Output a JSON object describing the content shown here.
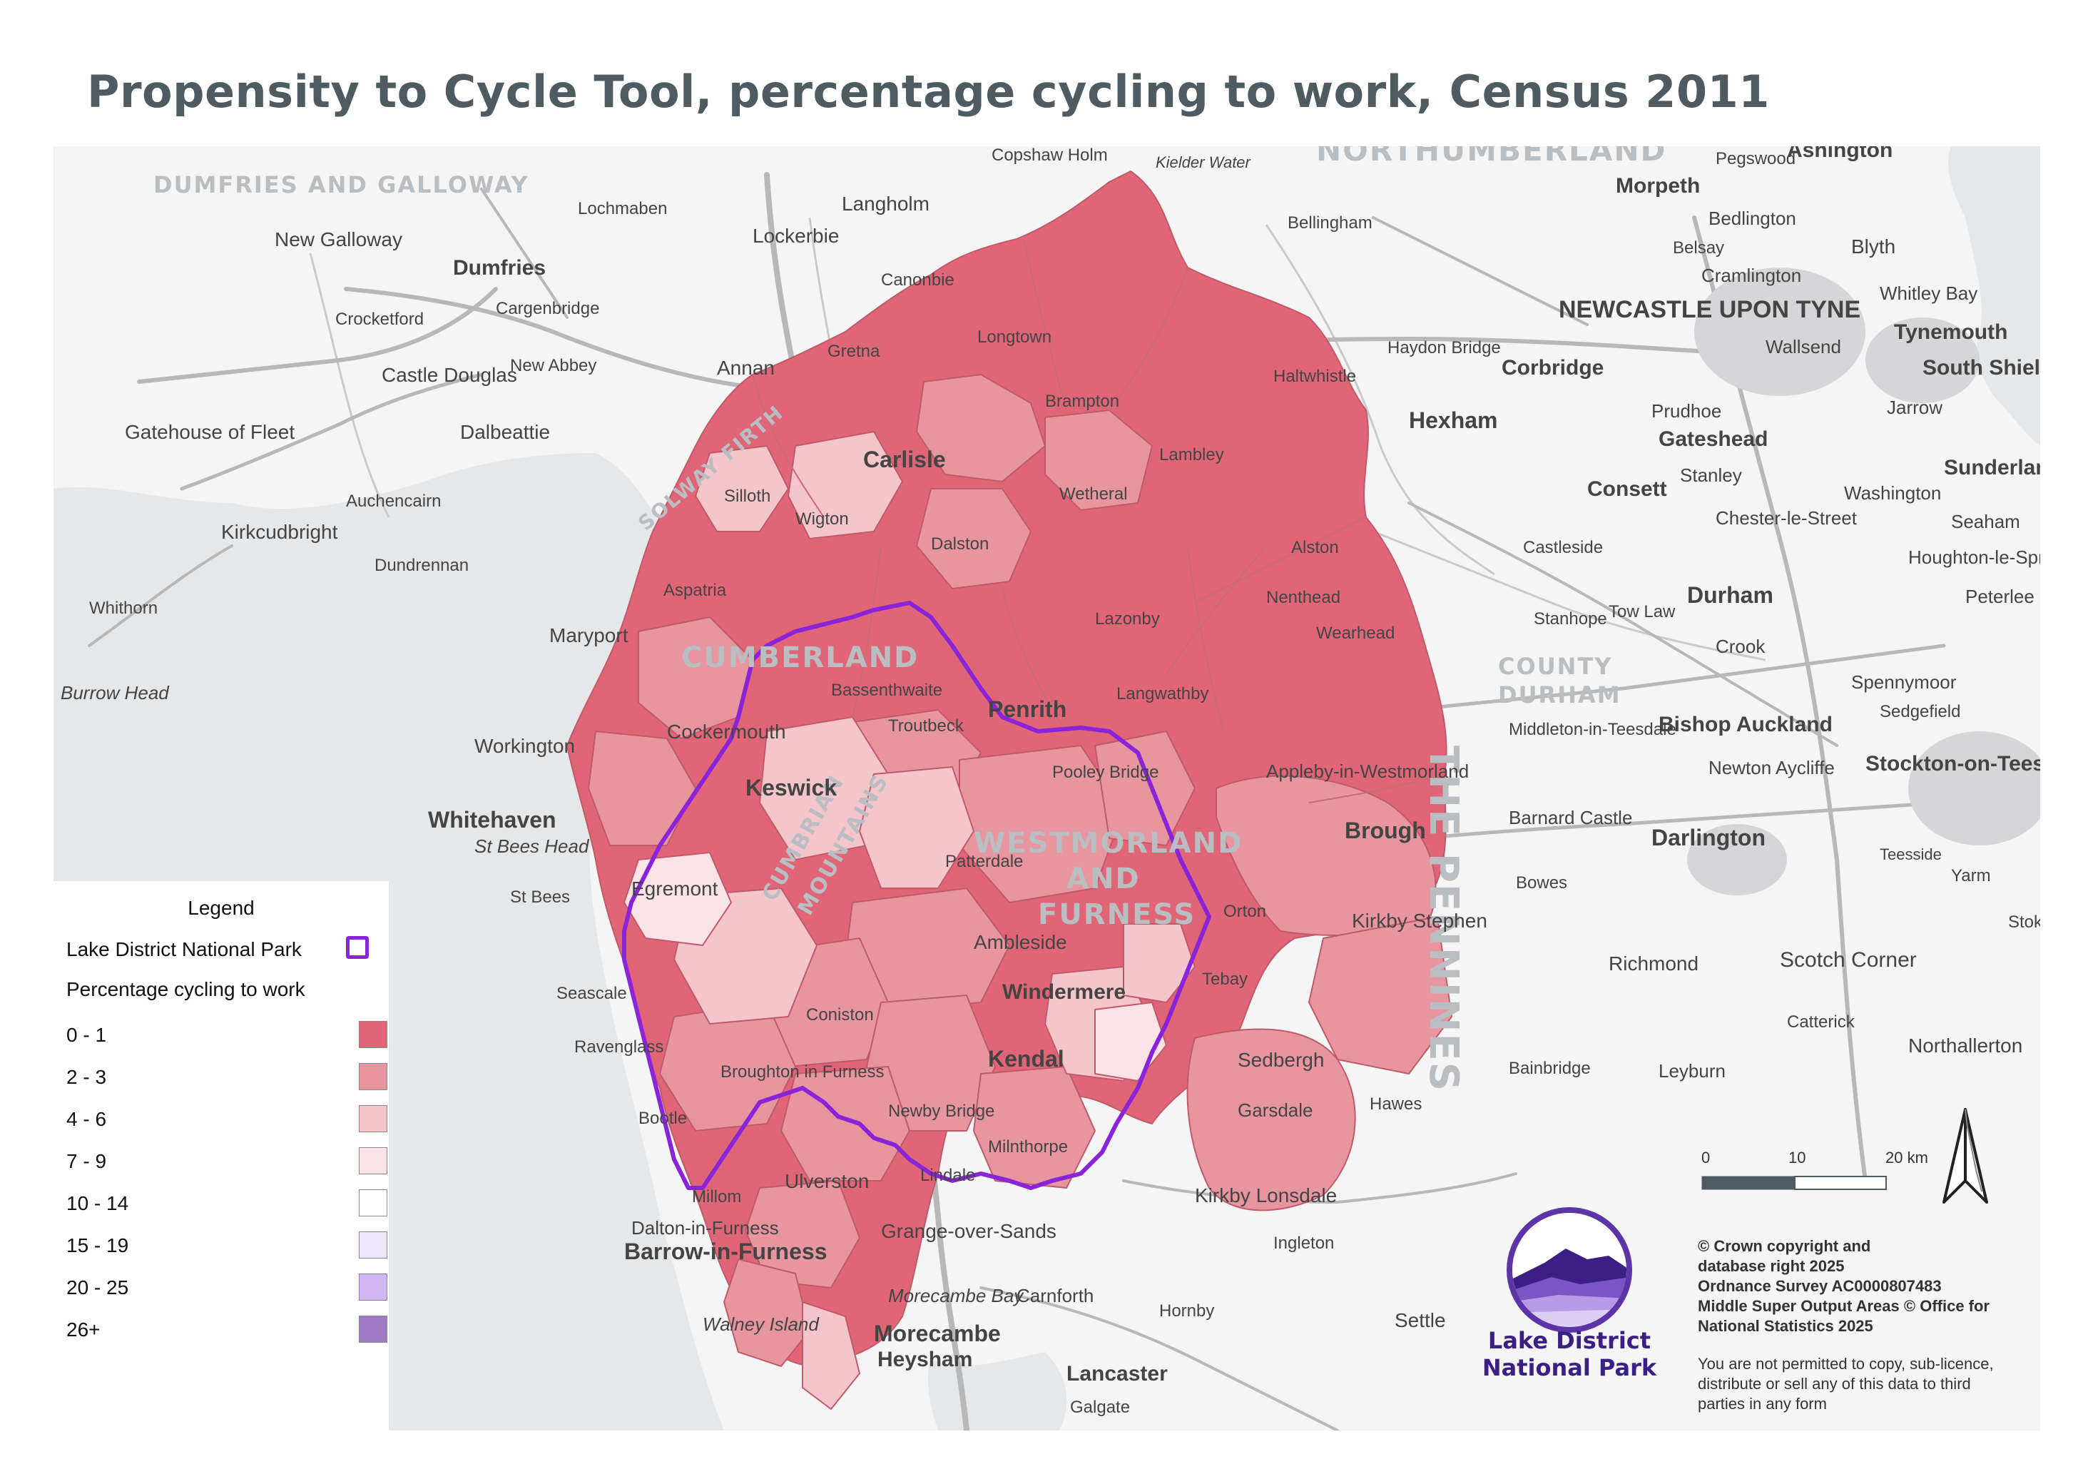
{
  "title": "Propensity to Cycle Tool, percentage cycling to work, Census 2011",
  "colors": {
    "boundary": "#8a24d8",
    "sea": "#e6e7e8",
    "land": "#f5f5f5",
    "road": "#b8b8b8"
  },
  "legend": {
    "title": "Legend",
    "boundary_label": "Lake District National Park",
    "subtitle": "Percentage cycling to work",
    "classes": [
      {
        "label": "0 - 1",
        "color": "#e06677"
      },
      {
        "label": "2 - 3",
        "color": "#e7959f"
      },
      {
        "label": "4 - 6",
        "color": "#f5c5cc"
      },
      {
        "label": "7 - 9",
        "color": "#fbe3e7"
      },
      {
        "label": "10 - 14",
        "color": "#ffffff"
      },
      {
        "label": "15 - 19",
        "color": "#ebe6fa"
      },
      {
        "label": "20 - 25",
        "color": "#d2b6f3"
      },
      {
        "label": "26+",
        "color": "#a07ac4"
      }
    ]
  },
  "scale": {
    "ticks": [
      "0",
      "10",
      "20 km"
    ]
  },
  "logo": {
    "line1": "Lake District",
    "line2": "National Park"
  },
  "copyright": [
    "© Crown copyright and",
    "database right 2025",
    "Ordnance Survey AC0000807483",
    "Middle Super Output Areas © Office for",
    "National Statistics 2025"
  ],
  "permission": [
    "You are not permitted to copy, sub-licence,",
    "distribute or sell any of this data to third",
    "parties in any form"
  ],
  "map_labels": {
    "regions": [
      "DUMFRIES AND GALLOWAY",
      "NORTHUMBERLAND",
      "CUMBERLAND",
      "WESTMORLAND",
      "AND",
      "FURNESS",
      "COUNTY",
      "DURHAM",
      "CUMBRIAN",
      "MOUNTAINS",
      "SOLWAY FIRTH",
      "THE PENNINES"
    ],
    "places": [
      "Dumfries",
      "Lockerbie",
      "Langholm",
      "Annan",
      "Gretna",
      "Longtown",
      "Carlisle",
      "Brampton",
      "Wigton",
      "Silloth",
      "Aspatria",
      "Maryport",
      "Workington",
      "Cockermouth",
      "Whitehaven",
      "St Bees Head",
      "St Bees",
      "Egremont",
      "Keswick",
      "Penrith",
      "Pooley Bridge",
      "Troutbeck",
      "Bassenthwaite",
      "Patterdale",
      "Ambleside",
      "Windermere",
      "Kendal",
      "Coniston",
      "Broughton in Furness",
      "Newby Bridge",
      "Lindale",
      "Milnthorpe",
      "Grange-over-Sands",
      "Ulverston",
      "Barrow-in-Furness",
      "Walney Island",
      "Morecambe Bay",
      "Morecambe",
      "Heysham",
      "Lancaster",
      "Carnforth",
      "Kirkby Lonsdale",
      "Sedbergh",
      "Garsdale",
      "Kirkby Stephen",
      "Appleby-in-Westmorland",
      "Brough",
      "Tebay",
      "Orton",
      "Alston",
      "Nenthead",
      "Lazonby",
      "Langwathby",
      "Dalston",
      "Wetheral",
      "Lambley",
      "Haltwhistle",
      "Hexham",
      "Corbridge",
      "Morpeth",
      "Ashington",
      "NEWCASTLE UPON TYNE",
      "Gateshead",
      "Tynemouth",
      "South Shields",
      "Sunderland",
      "Consett",
      "Durham",
      "Bishop Auckland",
      "Darlington",
      "Stockton-on-Tees",
      "Barnard Castle",
      "Richmond",
      "Northallerton",
      "Scotch Corner",
      "Seascale",
      "Ravenglass",
      "Bootle",
      "Millom",
      "Dalton-in-Furness",
      "Gatehouse of Fleet",
      "Kirkcudbright",
      "Castle Douglas",
      "New Galloway",
      "Dalbeattie",
      "Auchencairn",
      "Dundrennan",
      "Whithorn",
      "Burrow Head",
      "Crocketford",
      "Cargenbridge",
      "New Abbey",
      "Lochmaben",
      "Canonbie",
      "Copshaw Holm",
      "Kielder Water",
      "Bellingham",
      "Haydon Bridge",
      "Prudhoe",
      "Stanley",
      "Chester-le-Street",
      "Washington",
      "Seaham",
      "Peterlee",
      "Crook",
      "Spennymoor",
      "Sedgefield",
      "Newton Aycliffe",
      "Middleton-in-Teesdale",
      "Bowes",
      "Leyburn",
      "Bainbridge",
      "Hawes",
      "Ingleton",
      "Hornby",
      "Galgate",
      "Catterick",
      "Stanhope",
      "Wearhead",
      "Castleside",
      "Tow Law",
      "Yarm",
      "Whitley Bay",
      "Wallsend",
      "Blyth",
      "Cramlington",
      "Bedlington",
      "Belsay",
      "Pegswood",
      "Jarrow",
      "Houghton-le-Spring",
      "Stokesley",
      "Teesside",
      "Settle"
    ]
  }
}
